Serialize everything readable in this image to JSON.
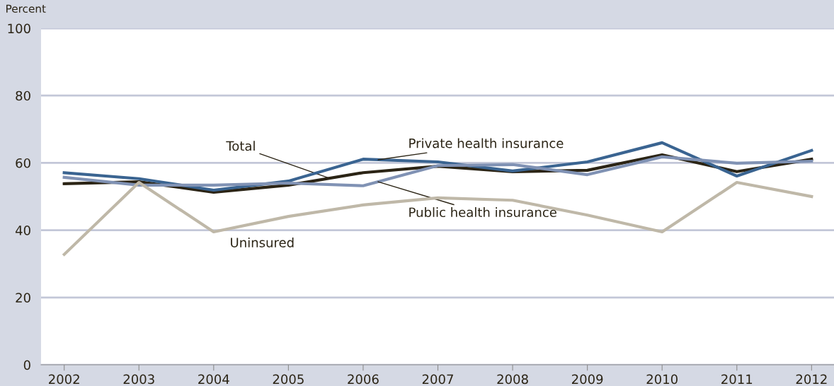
{
  "chart_data": {
    "type": "line",
    "ylabel": "Percent",
    "x": [
      2002,
      2003,
      2004,
      2005,
      2006,
      2007,
      2008,
      2009,
      2010,
      2011,
      2012
    ],
    "xlim": [
      2001.69,
      2012.3
    ],
    "xticks": [
      2002,
      2003,
      2004,
      2005,
      2006,
      2007,
      2008,
      2009,
      2010,
      2011,
      2012
    ],
    "ylim": [
      0,
      100
    ],
    "yticks": [
      0,
      20,
      40,
      60,
      80,
      100
    ],
    "grid": "y",
    "legend": false,
    "marker": "none",
    "line_style": "solid",
    "series": [
      {
        "name": "Total",
        "color": "#2b2415",
        "values": [
          53.8,
          54.4,
          51.3,
          53.4,
          57.1,
          59.0,
          57.4,
          57.8,
          62.4,
          57.4,
          61.1
        ]
      },
      {
        "name": "Private health insurance",
        "color": "#3a6491",
        "values": [
          57.1,
          55.3,
          51.9,
          54.6,
          61.1,
          60.3,
          57.6,
          60.3,
          66.0,
          56.1,
          63.7
        ]
      },
      {
        "name": "Public health insurance",
        "color": "#8092b4",
        "values": [
          55.7,
          53.4,
          53.4,
          54.0,
          53.2,
          59.2,
          59.5,
          56.5,
          61.8,
          59.9,
          60.5
        ]
      },
      {
        "name": "Uninsured",
        "color": "#bfb8a8",
        "values": [
          32.8,
          54.2,
          39.5,
          44.1,
          47.5,
          49.6,
          48.9,
          44.5,
          39.5,
          54.2,
          50.0
        ]
      }
    ]
  }
}
